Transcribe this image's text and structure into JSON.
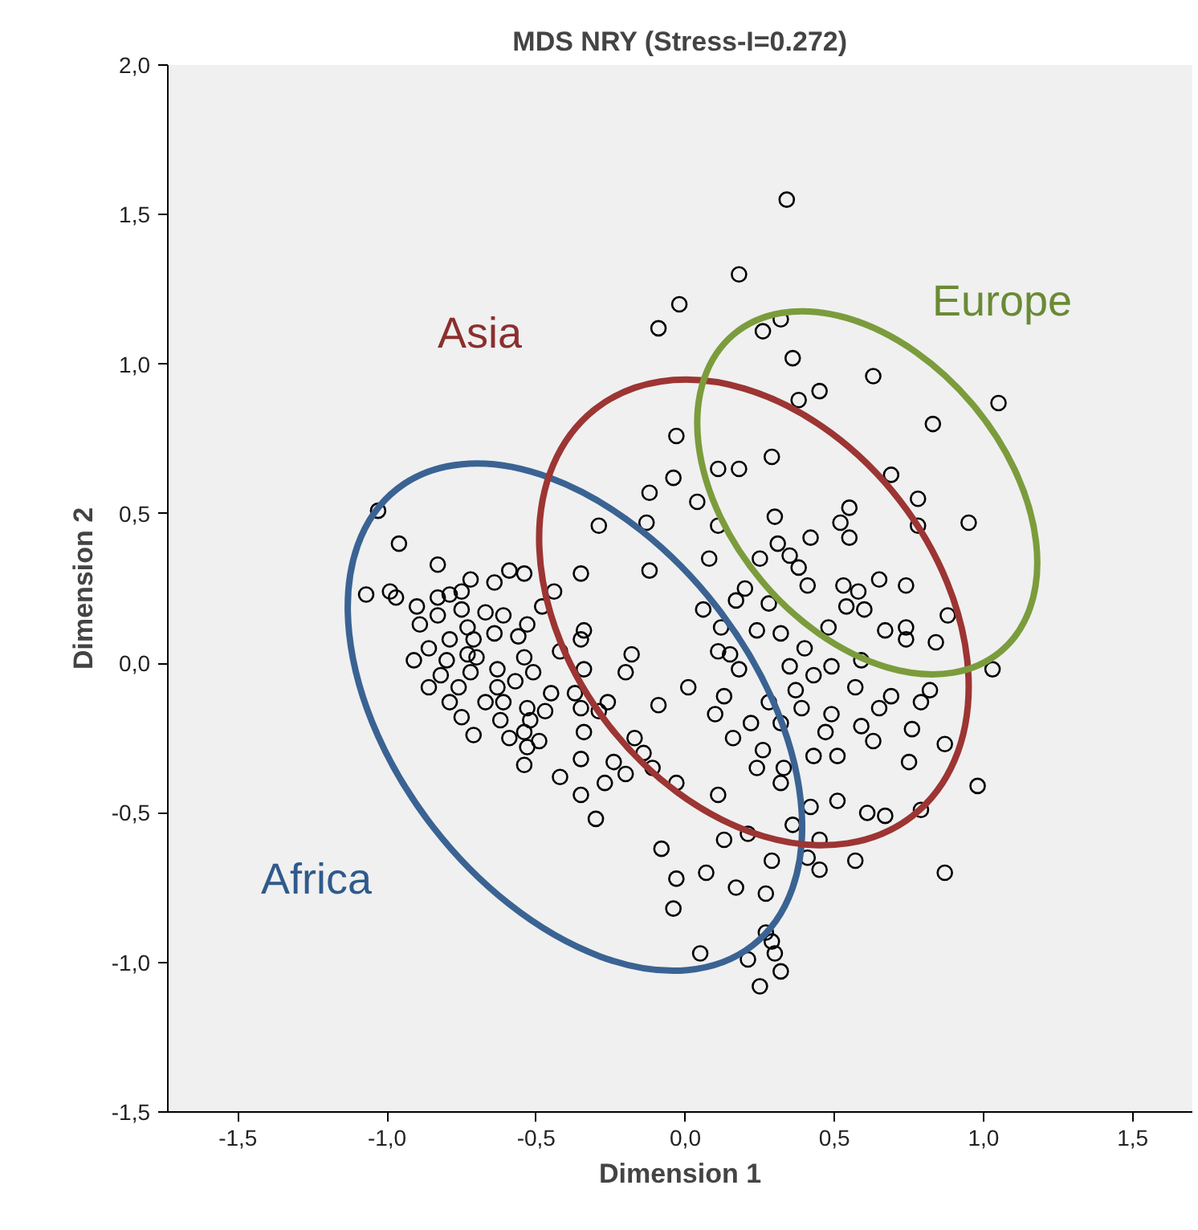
{
  "chart_data": {
    "type": "scatter",
    "title": "MDS NRY (Stress-I=0.272)",
    "xlabel": "Dimension 1",
    "ylabel": "Dimension 2",
    "xlim": [
      -1.735,
      1.7
    ],
    "ylim": [
      -1.5,
      2.0
    ],
    "xticks": [
      {
        "value": -1.5,
        "label": "-1,5"
      },
      {
        "value": -1.0,
        "label": "-1,0"
      },
      {
        "value": -0.5,
        "label": "-0,5"
      },
      {
        "value": 0.0,
        "label": "0,0"
      },
      {
        "value": 0.5,
        "label": "0,5"
      },
      {
        "value": 1.0,
        "label": "1,0"
      },
      {
        "value": 1.5,
        "label": "1,5"
      }
    ],
    "yticks": [
      {
        "value": -1.5,
        "label": "-1,5"
      },
      {
        "value": -1.0,
        "label": "-1,0"
      },
      {
        "value": -0.5,
        "label": "-0,5"
      },
      {
        "value": 0.0,
        "label": "0,0"
      },
      {
        "value": 0.5,
        "label": "0,5"
      },
      {
        "value": 1.0,
        "label": "1,0"
      },
      {
        "value": 1.5,
        "label": "1,5"
      },
      {
        "value": 2.0,
        "label": "2,0"
      }
    ],
    "grid": false,
    "series": [
      {
        "marker": "circle",
        "color": "#000000",
        "x": [
          0.34,
          0.18,
          -0.02,
          -0.09,
          0.26,
          0.32,
          0.36,
          0.63,
          0.45,
          0.38,
          1.05,
          0.83,
          -0.03,
          0.29,
          0.11,
          0.18,
          0.69,
          0.78,
          0.78,
          0.95,
          -0.04,
          -0.12,
          0.04,
          0.3,
          0.52,
          0.55,
          0.55,
          0.42,
          0.11,
          0.31,
          0.25,
          0.35,
          0.38,
          0.08,
          -0.12,
          0.41,
          0.65,
          0.53,
          0.58,
          0.74,
          0.54,
          0.6,
          0.88,
          0.2,
          0.17,
          0.28,
          0.06,
          0.32,
          0.24,
          0.12,
          0.11,
          0.18,
          0.15,
          0.4,
          0.48,
          0.67,
          0.74,
          0.74,
          0.84,
          1.03,
          0.49,
          0.43,
          0.35,
          0.59,
          0.57,
          0.69,
          0.82,
          0.79,
          0.65,
          0.37,
          0.01,
          0.13,
          -0.09,
          0.1,
          0.22,
          0.28,
          0.39,
          0.32,
          0.49,
          0.47,
          0.59,
          0.63,
          0.76,
          0.16,
          0.26,
          0.43,
          0.51,
          0.87,
          0.24,
          0.33,
          0.75,
          0.98,
          -0.03,
          0.11,
          0.32,
          0.51,
          0.42,
          0.61,
          0.67,
          0.79,
          0.21,
          0.13,
          -0.08,
          0.36,
          0.45,
          0.29,
          0.41,
          0.45,
          0.57,
          0.87,
          0.07,
          -0.03,
          0.17,
          0.27,
          -0.04,
          0.05,
          0.27,
          0.29,
          0.3,
          0.21,
          0.32,
          0.25,
          -1.03,
          -0.96,
          -0.83,
          -1.07,
          -0.99,
          -0.97,
          -0.9,
          -0.89,
          -0.83,
          -0.79,
          -0.75,
          -0.72,
          -0.64,
          -0.59,
          -0.54,
          -0.75,
          -0.83,
          -0.67,
          -0.61,
          -0.64,
          -0.73,
          -0.79,
          -0.86,
          -0.91,
          -0.8,
          -0.71,
          -0.73,
          -0.7,
          -0.72,
          -0.82,
          -0.86,
          -0.76,
          -0.79,
          -0.75,
          -0.71,
          -0.63,
          -0.63,
          -0.67,
          -0.61,
          -0.62,
          -0.59,
          -0.57,
          -0.54,
          -0.56,
          -0.53,
          -0.51,
          -0.53,
          -0.52,
          -0.54,
          -0.49,
          -0.53,
          -0.54,
          -0.45,
          -0.47,
          -0.44,
          -0.48,
          -0.35,
          -0.29,
          -0.42,
          -0.35,
          -0.34,
          -0.34,
          -0.37,
          -0.35,
          -0.34,
          -0.29,
          -0.26,
          -0.35,
          -0.42,
          -0.35,
          -0.3,
          -0.27,
          -0.24,
          -0.2,
          -0.17,
          -0.14,
          -0.11,
          -0.18,
          -0.2,
          -0.13
        ],
        "values": [
          1.55,
          1.3,
          1.2,
          1.12,
          1.11,
          1.15,
          1.02,
          0.96,
          0.91,
          0.88,
          0.87,
          0.8,
          0.76,
          0.69,
          0.65,
          0.65,
          0.63,
          0.55,
          0.46,
          0.47,
          0.62,
          0.57,
          0.54,
          0.49,
          0.47,
          0.52,
          0.42,
          0.42,
          0.46,
          0.4,
          0.35,
          0.36,
          0.32,
          0.35,
          0.31,
          0.26,
          0.28,
          0.26,
          0.24,
          0.26,
          0.19,
          0.18,
          0.16,
          0.25,
          0.21,
          0.2,
          0.18,
          0.1,
          0.11,
          0.12,
          0.04,
          -0.02,
          0.03,
          0.05,
          0.12,
          0.11,
          0.08,
          0.12,
          0.07,
          -0.02,
          -0.01,
          -0.04,
          -0.01,
          0.01,
          -0.08,
          -0.11,
          -0.09,
          -0.13,
          -0.15,
          -0.09,
          -0.08,
          -0.11,
          -0.14,
          -0.17,
          -0.2,
          -0.13,
          -0.15,
          -0.2,
          -0.17,
          -0.23,
          -0.21,
          -0.26,
          -0.22,
          -0.25,
          -0.29,
          -0.31,
          -0.31,
          -0.27,
          -0.35,
          -0.35,
          -0.33,
          -0.41,
          -0.4,
          -0.44,
          -0.4,
          -0.46,
          -0.48,
          -0.5,
          -0.51,
          -0.49,
          -0.57,
          -0.59,
          -0.62,
          -0.54,
          -0.59,
          -0.66,
          -0.65,
          -0.69,
          -0.66,
          -0.7,
          -0.7,
          -0.72,
          -0.75,
          -0.77,
          -0.82,
          -0.97,
          -0.9,
          -0.93,
          -0.97,
          -0.99,
          -1.03,
          -1.08,
          0.51,
          0.4,
          0.33,
          0.23,
          0.24,
          0.22,
          0.19,
          0.13,
          0.22,
          0.23,
          0.24,
          0.28,
          0.27,
          0.31,
          0.3,
          0.18,
          0.16,
          0.17,
          0.16,
          0.1,
          0.12,
          0.08,
          0.05,
          0.01,
          0.01,
          0.08,
          0.03,
          0.02,
          -0.03,
          -0.04,
          -0.08,
          -0.08,
          -0.13,
          -0.18,
          -0.24,
          -0.02,
          -0.08,
          -0.13,
          -0.13,
          -0.19,
          -0.25,
          -0.06,
          0.02,
          0.09,
          0.13,
          -0.03,
          -0.15,
          -0.19,
          -0.23,
          -0.26,
          -0.28,
          -0.34,
          -0.1,
          -0.16,
          0.24,
          0.19,
          0.3,
          0.46,
          0.04,
          0.08,
          0.11,
          -0.02,
          -0.1,
          -0.15,
          -0.23,
          -0.16,
          -0.13,
          -0.32,
          -0.38,
          -0.44,
          -0.52,
          -0.4,
          -0.33,
          -0.37,
          -0.25,
          -0.3,
          -0.35,
          0.03,
          -0.03,
          0.47
        ]
      }
    ],
    "annotations": [
      "Africa",
      "Asia",
      "Europe"
    ]
  }
}
